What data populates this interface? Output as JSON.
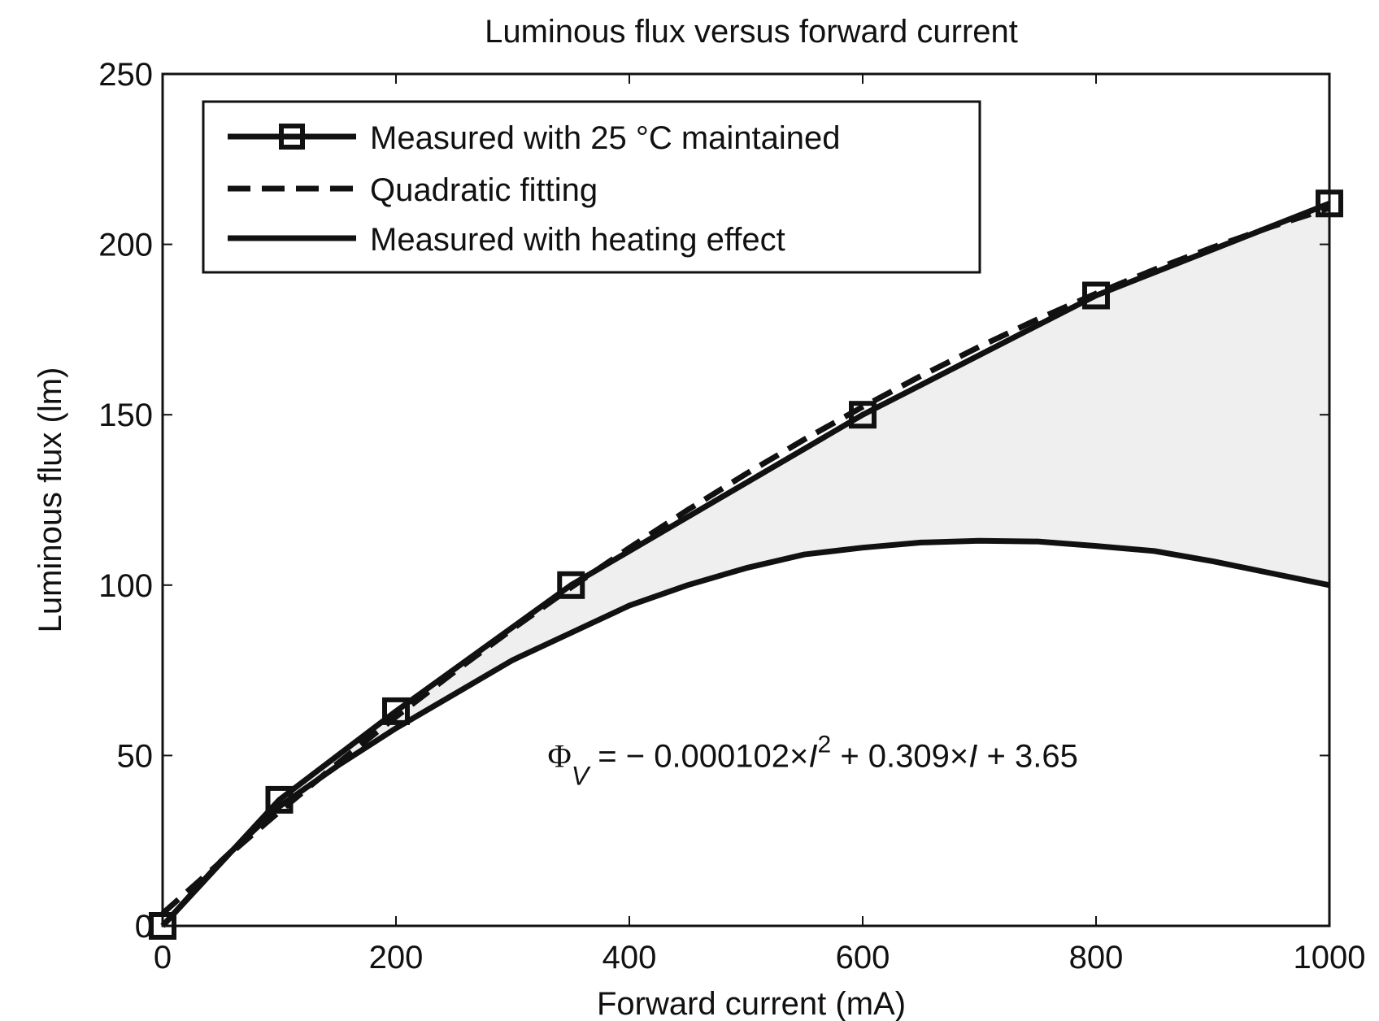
{
  "chart_data": {
    "type": "line",
    "title": "Luminous flux versus forward current",
    "xlabel": "Forward current (mA)",
    "ylabel": "Luminous flux  (lm)",
    "xlim": [
      0,
      1000
    ],
    "ylim": [
      0,
      250
    ],
    "xticks": [
      0,
      200,
      400,
      600,
      800,
      1000
    ],
    "yticks": [
      0,
      50,
      100,
      150,
      200,
      250
    ],
    "grid": false,
    "legend_position": "top-left",
    "shaded_region": {
      "between": [
        "Measured with 25 °C maintained",
        "Measured with heating effect"
      ],
      "color": "#efefef"
    },
    "series": [
      {
        "name": "Measured with 25 °C maintained",
        "style": "solid-square-markers",
        "color": "#111111",
        "x": [
          0,
          100,
          200,
          350,
          600,
          800,
          1000
        ],
        "y": [
          0,
          37,
          63,
          100,
          150,
          185,
          212
        ]
      },
      {
        "name": "Quadratic fitting",
        "style": "dashed",
        "color": "#111111",
        "x": [
          0,
          50,
          100,
          150,
          200,
          250,
          300,
          350,
          400,
          450,
          500,
          550,
          600,
          650,
          700,
          750,
          800,
          850,
          900,
          950,
          1000
        ],
        "y": [
          3.65,
          18.85,
          33.53,
          47.7,
          61.37,
          74.53,
          87.17,
          99.31,
          110.93,
          122.05,
          132.65,
          142.75,
          152.33,
          161.41,
          169.97,
          178.03,
          185.57,
          192.61,
          199.13,
          205.15,
          210.65
        ]
      },
      {
        "name": "Measured with heating effect",
        "style": "solid",
        "color": "#111111",
        "x": [
          0,
          50,
          100,
          150,
          200,
          250,
          300,
          350,
          400,
          450,
          500,
          550,
          600,
          650,
          700,
          750,
          800,
          850,
          900,
          950,
          1000
        ],
        "y": [
          0,
          19,
          35,
          47,
          58,
          68,
          78,
          86,
          94,
          100,
          105,
          109,
          111,
          112.5,
          113,
          112.8,
          111.5,
          110,
          107,
          103.5,
          100
        ]
      }
    ],
    "annotation": {
      "text_main": "Φ",
      "text_sub": "V",
      "text_part1": " = − 0.000102×",
      "text_var1": "I",
      "text_sup": "2",
      "text_part2": " + 0.309×",
      "text_var2": "I",
      "text_part3": " + 3.65",
      "x": 330,
      "y": 50
    }
  }
}
